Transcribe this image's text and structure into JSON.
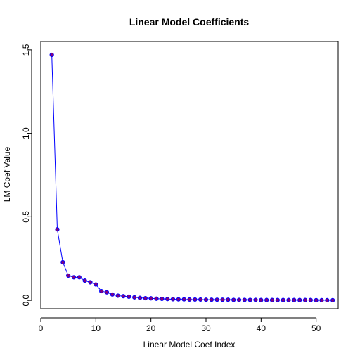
{
  "chart_data": {
    "type": "line",
    "title": "Linear Model Coefficients",
    "xlabel": "Linear Model Coef Index",
    "ylabel": "LM Coef Value",
    "xlim": [
      0,
      54
    ],
    "ylim": [
      -0.05,
      1.55
    ],
    "xticks": [
      0,
      10,
      20,
      30,
      40,
      50
    ],
    "yticks": [
      0.0,
      0.5,
      1.0,
      1.5
    ],
    "xtick_labels": [
      "0",
      "10",
      "20",
      "30",
      "40",
      "50"
    ],
    "ytick_labels": [
      "0.0",
      "0.5",
      "1.0",
      "1.5"
    ],
    "grid": false,
    "x": [
      2,
      3,
      4,
      5,
      6,
      7,
      8,
      9,
      10,
      11,
      12,
      13,
      14,
      15,
      16,
      17,
      18,
      19,
      20,
      21,
      22,
      23,
      24,
      25,
      26,
      27,
      28,
      29,
      30,
      31,
      32,
      33,
      34,
      35,
      36,
      37,
      38,
      39,
      40,
      41,
      42,
      43,
      44,
      45,
      46,
      47,
      48,
      49,
      50,
      51,
      52,
      53
    ],
    "series": [
      {
        "values": [
          1.47,
          0.425,
          0.228,
          0.148,
          0.138,
          0.138,
          0.118,
          0.108,
          0.095,
          0.055,
          0.048,
          0.035,
          0.028,
          0.025,
          0.022,
          0.018,
          0.015,
          0.013,
          0.012,
          0.01,
          0.009,
          0.008,
          0.007,
          0.006,
          0.006,
          0.005,
          0.005,
          0.005,
          0.004,
          0.004,
          0.004,
          0.004,
          0.004,
          0.003,
          0.003,
          0.003,
          0.003,
          0.003,
          0.002,
          0.002,
          0.002,
          0.002,
          0.002,
          0.002,
          0.002,
          0.002,
          0.002,
          0.002,
          0.001,
          0.001,
          0.001,
          0.001
        ],
        "line_color": "#0000ff",
        "marker_color": "#800080"
      }
    ]
  }
}
